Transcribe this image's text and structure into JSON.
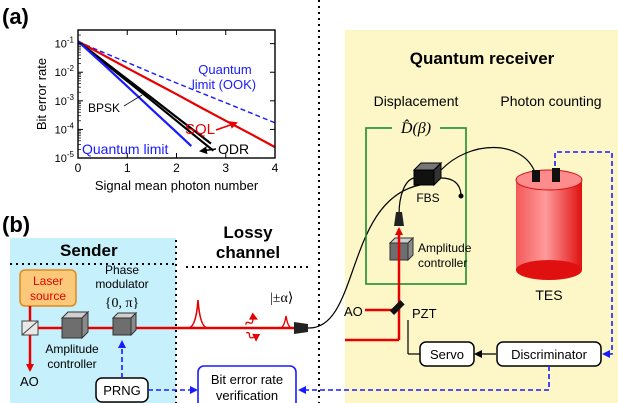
{
  "panel_a": {
    "label": "(a)",
    "chart_data": {
      "type": "line",
      "xlabel": "Signal mean photon number",
      "ylabel": "Bit error rate",
      "xlim": [
        0,
        4
      ],
      "ylim": [
        1e-05,
        0.3
      ],
      "y_scale": "log",
      "grid": false,
      "x_ticks": [
        "0",
        "1",
        "2",
        "3",
        "4"
      ],
      "y_ticks": [
        {
          "base": "10",
          "exp": "-1",
          "value": 0.1
        },
        {
          "base": "10",
          "exp": "-2",
          "value": 0.01
        },
        {
          "base": "10",
          "exp": "-3",
          "value": 0.001
        },
        {
          "base": "10",
          "exp": "-4",
          "value": 0.0001
        },
        {
          "base": "10",
          "exp": "-5",
          "value": 1e-05
        }
      ],
      "series": [
        {
          "name": "Quantum limit (OOK)",
          "color": "#1a1aff",
          "dash": true,
          "x": [
            0,
            0.5,
            1,
            1.5,
            2,
            2.5,
            3,
            3.5,
            4
          ],
          "y": [
            0.12,
            0.05,
            0.022,
            0.0095,
            0.0042,
            0.0019,
            0.00085,
            0.00038,
            0.00017
          ]
        },
        {
          "name": "SQL",
          "color": "#e60000",
          "dash": false,
          "x": [
            0,
            0.5,
            1,
            1.5,
            2,
            2.5,
            3,
            3.5,
            4
          ],
          "y": [
            0.12,
            0.041,
            0.014,
            0.0049,
            0.0017,
            0.00058,
            0.0002,
            7e-05,
            2.4e-05
          ]
        },
        {
          "name": "BPSK",
          "color": "#000000",
          "dash": false,
          "x": [
            0,
            0.5,
            1,
            1.5,
            2,
            2.5,
            2.7
          ],
          "y": [
            0.12,
            0.026,
            0.0057,
            0.00125,
            0.00027,
            5.9e-05,
            3.2e-05
          ]
        },
        {
          "name": "ODR",
          "color": "#000000",
          "dash": false,
          "x": [
            0,
            0.5,
            1,
            1.5,
            2,
            2.5,
            2.75
          ],
          "y": [
            0.12,
            0.024,
            0.0049,
            0.001,
            0.0002,
            4e-05,
            1.8e-05
          ]
        },
        {
          "name": "Quantum limit",
          "color": "#1a1aff",
          "dash": false,
          "x": [
            0,
            0.5,
            1,
            1.5,
            2,
            2.3
          ],
          "y": [
            0.12,
            0.02,
            0.0032,
            0.0005,
            8e-05,
            2.6e-05
          ]
        }
      ],
      "annotations": [
        "Quantum",
        "limit (OOK)",
        "BPSK",
        "SQL",
        "ODR",
        "Quantum  limit"
      ]
    }
  },
  "panel_b": {
    "label": "(b)",
    "sender_title": "Sender",
    "channel_title_1": "Lossy",
    "channel_title_2": "channel",
    "receiver_title": "Quantum receiver",
    "displacement_label": "Displacement",
    "photon_counting_label": "Photon counting",
    "displacement_operator": "D̂(β)",
    "laser_source_1": "Laser",
    "laser_source_2": "source",
    "amplitude_controller_1": "Amplitude",
    "amplitude_controller_2": "controller",
    "phase_modulator_1": "Phase",
    "phase_modulator_2": "modulator",
    "phase_values": "{0, π}",
    "ao_left": "AO",
    "ao_right": "AO",
    "prng": "PRNG",
    "ber_verification_1": "Bit error rate",
    "ber_verification_2": "verification",
    "state_label": "|±α⟩",
    "fbs": "FBS",
    "pzt": "PZT",
    "tes": "TES",
    "servo": "Servo",
    "discriminator": "Discriminator",
    "colors": {
      "sender_bg": "#c6f0fb",
      "receiver_bg": "#fdf7c8",
      "laser_box": "#fcc97a",
      "beam": "#e60000",
      "signal": "#1a1aff",
      "green_box": "#1e8c2e",
      "tes_body": "#f02020"
    },
    "icons": [
      "cube-icon",
      "beam-splitter-icon",
      "fiber-coupler-icon",
      "mirror-icon",
      "pulse-icon",
      "loss-photon-icon"
    ]
  }
}
